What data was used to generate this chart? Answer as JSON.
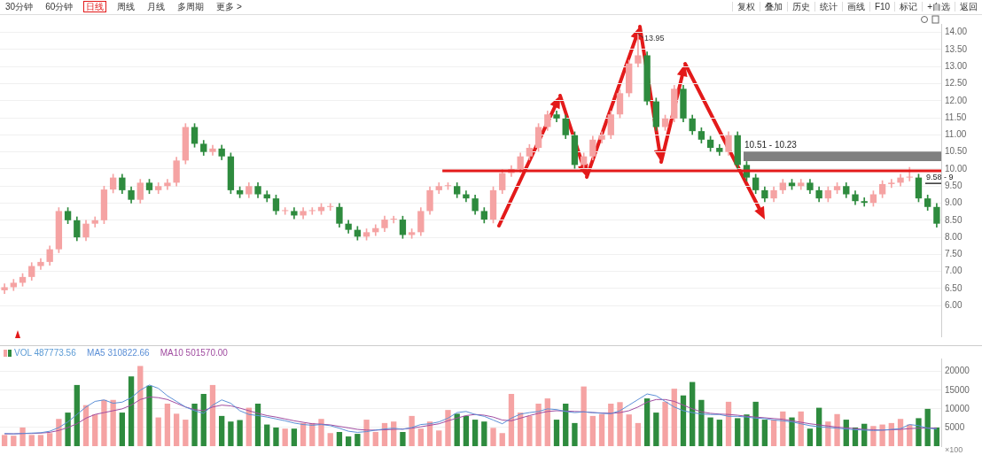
{
  "chart_data": [
    {
      "type": "candlestick",
      "annotations": [
        "30分钟",
        "60分钟",
        "日线",
        "周线",
        "月线",
        "多周期",
        "更多 >",
        "复权",
        "叠加",
        "历史",
        "统计",
        "画线",
        "F10",
        "标记",
        "+自选",
        "返回",
        "13.95"
      ],
      "categories": [
        null,
        null,
        null,
        null,
        null,
        null,
        null,
        null,
        null,
        null,
        null,
        null,
        null,
        null,
        null,
        null,
        null,
        null,
        null,
        null,
        null,
        null,
        null,
        null,
        null,
        null,
        null,
        null,
        null,
        null,
        null,
        null,
        null,
        null,
        null,
        null,
        null,
        null,
        null,
        null,
        null,
        null,
        null,
        null,
        null,
        null,
        null,
        null,
        null,
        null,
        null,
        null,
        null,
        null,
        null,
        null,
        null,
        null,
        null,
        null,
        null,
        null,
        null,
        null,
        null,
        null,
        null,
        null,
        null,
        null,
        null,
        null,
        null,
        null,
        null,
        null,
        null,
        null,
        null,
        null,
        null,
        null,
        null,
        null,
        null,
        null,
        null,
        null,
        null,
        null,
        null,
        null,
        null,
        null,
        null,
        null,
        null,
        null,
        null,
        null,
        null,
        null,
        null,
        null
      ],
      "ohlc": [
        [
          6.45,
          6.64,
          6.35,
          6.54
        ],
        [
          6.54,
          6.77,
          6.44,
          6.67
        ],
        [
          6.67,
          6.94,
          6.57,
          6.84
        ],
        [
          6.84,
          7.26,
          6.74,
          7.16
        ],
        [
          7.16,
          7.38,
          7.06,
          7.28
        ],
        [
          7.28,
          7.75,
          7.18,
          7.65
        ],
        [
          7.65,
          8.87,
          7.55,
          8.77
        ],
        [
          8.77,
          8.87,
          8.4,
          8.5
        ],
        [
          8.5,
          8.6,
          7.9,
          8.0
        ],
        [
          8.0,
          8.5,
          7.9,
          8.4
        ],
        [
          8.4,
          8.6,
          8.3,
          8.5
        ],
        [
          8.5,
          9.5,
          8.4,
          9.4
        ],
        [
          9.4,
          9.85,
          9.3,
          9.75
        ],
        [
          9.75,
          9.85,
          9.28,
          9.38
        ],
        [
          9.38,
          9.48,
          9.0,
          9.1
        ],
        [
          9.1,
          9.7,
          9.0,
          9.6
        ],
        [
          9.6,
          9.7,
          9.28,
          9.38
        ],
        [
          9.38,
          9.6,
          9.28,
          9.5
        ],
        [
          9.5,
          9.7,
          9.4,
          9.6
        ],
        [
          9.6,
          10.35,
          9.5,
          10.25
        ],
        [
          10.25,
          11.33,
          10.15,
          11.23
        ],
        [
          11.23,
          11.33,
          10.64,
          10.74
        ],
        [
          10.74,
          10.84,
          10.4,
          10.5
        ],
        [
          10.5,
          10.7,
          10.4,
          10.6
        ],
        [
          10.6,
          10.7,
          10.27,
          10.37
        ],
        [
          10.37,
          10.47,
          9.28,
          9.38
        ],
        [
          9.38,
          9.48,
          9.16,
          9.26
        ],
        [
          9.26,
          9.6,
          9.16,
          9.5
        ],
        [
          9.5,
          9.6,
          9.16,
          9.26
        ],
        [
          9.26,
          9.36,
          9.04,
          9.14
        ],
        [
          9.14,
          9.24,
          8.67,
          8.77
        ],
        [
          8.77,
          8.87,
          8.67,
          8.77
        ],
        [
          8.77,
          8.87,
          8.54,
          8.64
        ],
        [
          8.64,
          8.87,
          8.54,
          8.77
        ],
        [
          8.77,
          8.87,
          8.67,
          8.77
        ],
        [
          8.77,
          8.99,
          8.67,
          8.89
        ],
        [
          8.89,
          8.99,
          8.79,
          8.89
        ],
        [
          8.89,
          8.99,
          8.3,
          8.4
        ],
        [
          8.4,
          8.5,
          8.12,
          8.22
        ],
        [
          8.22,
          8.32,
          7.92,
          8.02
        ],
        [
          8.02,
          8.25,
          7.92,
          8.15
        ],
        [
          8.15,
          8.37,
          8.05,
          8.27
        ],
        [
          8.27,
          8.62,
          8.17,
          8.52
        ],
        [
          8.52,
          8.62,
          8.42,
          8.52
        ],
        [
          8.52,
          8.62,
          7.97,
          8.07
        ],
        [
          8.07,
          8.25,
          7.97,
          8.15
        ],
        [
          8.15,
          8.87,
          8.05,
          8.77
        ],
        [
          8.77,
          9.48,
          8.67,
          9.38
        ],
        [
          9.38,
          9.6,
          9.28,
          9.5
        ],
        [
          9.5,
          9.6,
          9.4,
          9.5
        ],
        [
          9.5,
          9.6,
          9.16,
          9.26
        ],
        [
          9.26,
          9.36,
          9.04,
          9.14
        ],
        [
          9.14,
          9.24,
          8.67,
          8.77
        ],
        [
          8.77,
          8.87,
          8.42,
          8.52
        ],
        [
          8.52,
          9.48,
          8.42,
          9.38
        ],
        [
          9.38,
          9.98,
          9.28,
          9.88
        ],
        [
          9.88,
          10.1,
          9.78,
          10.0
        ],
        [
          10.0,
          10.47,
          9.9,
          10.37
        ],
        [
          10.37,
          10.72,
          10.27,
          10.62
        ],
        [
          10.62,
          11.33,
          10.52,
          11.23
        ],
        [
          11.23,
          11.7,
          11.13,
          11.6
        ],
        [
          11.6,
          11.7,
          11.38,
          11.48
        ],
        [
          11.48,
          11.58,
          10.89,
          10.99
        ],
        [
          10.99,
          11.09,
          10.02,
          10.12
        ],
        [
          10.12,
          10.47,
          10.02,
          10.37
        ],
        [
          10.37,
          10.96,
          10.27,
          10.86
        ],
        [
          10.86,
          11.09,
          10.76,
          10.99
        ],
        [
          10.99,
          11.7,
          10.89,
          11.6
        ],
        [
          11.6,
          12.32,
          11.5,
          12.22
        ],
        [
          12.22,
          13.19,
          12.12,
          13.09
        ],
        [
          13.09,
          13.95,
          12.99,
          13.33
        ],
        [
          13.33,
          13.43,
          11.88,
          11.98
        ],
        [
          11.98,
          12.08,
          11.13,
          11.23
        ],
        [
          11.23,
          11.58,
          11.13,
          11.48
        ],
        [
          11.48,
          12.45,
          11.38,
          12.35
        ],
        [
          12.35,
          12.45,
          11.38,
          11.48
        ],
        [
          11.48,
          11.58,
          11.01,
          11.11
        ],
        [
          11.11,
          11.21,
          10.76,
          10.86
        ],
        [
          10.86,
          10.96,
          10.52,
          10.62
        ],
        [
          10.62,
          10.72,
          10.4,
          10.5
        ],
        [
          10.5,
          11.09,
          10.4,
          10.99
        ],
        [
          10.99,
          11.09,
          10.02,
          10.12
        ],
        [
          10.12,
          10.22,
          9.65,
          9.75
        ],
        [
          9.75,
          9.85,
          9.28,
          9.38
        ],
        [
          9.38,
          9.48,
          9.04,
          9.14
        ],
        [
          9.14,
          9.48,
          9.04,
          9.38
        ],
        [
          9.38,
          9.7,
          9.28,
          9.6
        ],
        [
          9.6,
          9.7,
          9.4,
          9.5
        ],
        [
          9.5,
          9.7,
          9.4,
          9.6
        ],
        [
          9.6,
          9.7,
          9.28,
          9.38
        ],
        [
          9.38,
          9.48,
          9.04,
          9.14
        ],
        [
          9.14,
          9.48,
          9.04,
          9.38
        ],
        [
          9.38,
          9.6,
          9.28,
          9.5
        ],
        [
          9.5,
          9.6,
          9.16,
          9.26
        ],
        [
          9.26,
          9.36,
          8.96,
          9.06
        ],
        [
          9.06,
          9.16,
          8.91,
          9.01
        ],
        [
          9.01,
          9.36,
          8.91,
          9.26
        ],
        [
          9.26,
          9.66,
          9.16,
          9.56
        ],
        [
          9.56,
          9.7,
          9.46,
          9.6
        ],
        [
          9.6,
          9.85,
          9.5,
          9.75
        ],
        [
          9.75,
          10.05,
          9.65,
          9.75
        ],
        [
          9.75,
          9.85,
          9.04,
          9.14
        ],
        [
          9.14,
          9.24,
          8.79,
          8.89
        ],
        [
          8.89,
          8.99,
          8.3,
          8.4
        ]
      ],
      "colors": [
        "#f5a3a3",
        "#f5a3a3",
        "#f5a3a3",
        "#f5a3a3",
        "#f5a3a3",
        "#f5a3a3",
        "#f5a3a3",
        "#2e8b3e",
        "#2e8b3e",
        "#f5a3a3",
        "#f5a3a3",
        "#f5a3a3",
        "#f5a3a3",
        "#2e8b3e",
        "#2e8b3e",
        "#f5a3a3",
        "#2e8b3e",
        "#f5a3a3",
        "#f5a3a3",
        "#f5a3a3",
        "#f5a3a3",
        "#2e8b3e",
        "#2e8b3e",
        "#f5a3a3",
        "#2e8b3e",
        "#2e8b3e",
        "#2e8b3e",
        "#f5a3a3",
        "#2e8b3e",
        "#2e8b3e",
        "#2e8b3e",
        "#f5a3a3",
        "#2e8b3e",
        "#f5a3a3",
        "#f5a3a3",
        "#f5a3a3",
        "#f5a3a3",
        "#2e8b3e",
        "#2e8b3e",
        "#2e8b3e",
        "#f5a3a3",
        "#f5a3a3",
        "#f5a3a3",
        "#f5a3a3",
        "#2e8b3e",
        "#f5a3a3",
        "#f5a3a3",
        "#f5a3a3",
        "#f5a3a3",
        "#f5a3a3",
        "#2e8b3e",
        "#2e8b3e",
        "#2e8b3e",
        "#2e8b3e",
        "#f5a3a3",
        "#f5a3a3",
        "#f5a3a3",
        "#f5a3a3",
        "#f5a3a3",
        "#f5a3a3",
        "#f5a3a3",
        "#2e8b3e",
        "#2e8b3e",
        "#2e8b3e",
        "#f5a3a3",
        "#f5a3a3",
        "#f5a3a3",
        "#f5a3a3",
        "#f5a3a3",
        "#f5a3a3",
        "#f5a3a3",
        "#2e8b3e",
        "#2e8b3e",
        "#f5a3a3",
        "#f5a3a3",
        "#2e8b3e",
        "#2e8b3e",
        "#2e8b3e",
        "#2e8b3e",
        "#2e8b3e",
        "#f5a3a3",
        "#2e8b3e",
        "#2e8b3e",
        "#2e8b3e",
        "#2e8b3e",
        "#f5a3a3",
        "#f5a3a3",
        "#2e8b3e",
        "#f5a3a3",
        "#2e8b3e",
        "#2e8b3e",
        "#f5a3a3",
        "#f5a3a3",
        "#2e8b3e",
        "#2e8b3e",
        "#2e8b3e",
        "#f5a3a3",
        "#f5a3a3",
        "#f5a3a3",
        "#f5a3a3",
        "#f5a3a3",
        "#2e8b3e",
        "#2e8b3e",
        "#2e8b3e"
      ],
      "ylim": [
        5.1,
        14.25
      ],
      "yticks": [
        {
          "value": 6,
          "label": "6.00"
        },
        {
          "value": 6.5,
          "label": "6.50"
        },
        {
          "value": 7,
          "label": "7.00"
        },
        {
          "value": 7.5,
          "label": "7.50"
        },
        {
          "value": 8,
          "label": "8.00"
        },
        {
          "value": 8.5,
          "label": "8.50"
        },
        {
          "value": 9,
          "label": "9.00"
        },
        {
          "value": 9.5,
          "label": "9.50"
        },
        {
          "value": 10,
          "label": "10.00"
        },
        {
          "value": 10.5,
          "label": "10.50"
        },
        {
          "value": 11,
          "label": "11.00"
        },
        {
          "value": 11.5,
          "label": "11.50"
        },
        {
          "value": 12,
          "label": "12.00"
        },
        {
          "value": 12.5,
          "label": "12.50"
        },
        {
          "value": 13,
          "label": "13.00"
        },
        {
          "value": 13.5,
          "label": "13.50"
        },
        {
          "value": 14,
          "label": "14.00"
        }
      ],
      "grid": "y",
      "ref_lines": [
        {
          "axis": "y",
          "value": 9.95,
          "color": "#e31a1a"
        },
        {
          "axis": "y",
          "value": 9.58,
          "label": "9.58 - 9",
          "color": "#333333"
        }
      ],
      "bands": [
        {
          "axis": "y",
          "from": 10.23,
          "to": 10.51,
          "label": "10.51 - 10.23",
          "color": "#808080"
        }
      ]
    },
    {
      "type": "bar",
      "annotations": [
        "×100"
      ],
      "categories": [
        null,
        null,
        null,
        null,
        null,
        null,
        null,
        null,
        null,
        null,
        null,
        null,
        null,
        null,
        null,
        null,
        null,
        null,
        null,
        null,
        null,
        null,
        null,
        null,
        null,
        null,
        null,
        null,
        null,
        null,
        null,
        null,
        null,
        null,
        null,
        null,
        null,
        null,
        null,
        null,
        null,
        null,
        null,
        null,
        null,
        null,
        null,
        null,
        null,
        null,
        null,
        null,
        null,
        null,
        null,
        null,
        null,
        null,
        null,
        null,
        null,
        null,
        null,
        null,
        null,
        null,
        null,
        null,
        null,
        null,
        null,
        null,
        null,
        null,
        null,
        null,
        null,
        null,
        null,
        null,
        null,
        null,
        null,
        null,
        null,
        null,
        null,
        null,
        null,
        null,
        null,
        null,
        null,
        null,
        null,
        null,
        null,
        null,
        null,
        null,
        null,
        null,
        null,
        null
      ],
      "series": [
        {
          "name": "VOL 487773.56",
          "type": "bar",
          "color": "#5b9bd5",
          "colors": [
            "#f5a3a3",
            "#f5a3a3",
            "#f5a3a3",
            "#f5a3a3",
            "#f5a3a3",
            "#f5a3a3",
            "#f5a3a3",
            "#2e8b3e",
            "#2e8b3e",
            "#f5a3a3",
            "#f5a3a3",
            "#f5a3a3",
            "#f5a3a3",
            "#2e8b3e",
            "#2e8b3e",
            "#f5a3a3",
            "#2e8b3e",
            "#f5a3a3",
            "#f5a3a3",
            "#f5a3a3",
            "#f5a3a3",
            "#2e8b3e",
            "#2e8b3e",
            "#f5a3a3",
            "#2e8b3e",
            "#2e8b3e",
            "#2e8b3e",
            "#f5a3a3",
            "#2e8b3e",
            "#2e8b3e",
            "#2e8b3e",
            "#f5a3a3",
            "#2e8b3e",
            "#f5a3a3",
            "#f5a3a3",
            "#f5a3a3",
            "#f5a3a3",
            "#2e8b3e",
            "#2e8b3e",
            "#2e8b3e",
            "#f5a3a3",
            "#f5a3a3",
            "#f5a3a3",
            "#f5a3a3",
            "#2e8b3e",
            "#f5a3a3",
            "#f5a3a3",
            "#f5a3a3",
            "#f5a3a3",
            "#f5a3a3",
            "#2e8b3e",
            "#2e8b3e",
            "#2e8b3e",
            "#2e8b3e",
            "#f5a3a3",
            "#f5a3a3",
            "#f5a3a3",
            "#f5a3a3",
            "#f5a3a3",
            "#f5a3a3",
            "#f5a3a3",
            "#2e8b3e",
            "#2e8b3e",
            "#2e8b3e",
            "#f5a3a3",
            "#f5a3a3",
            "#f5a3a3",
            "#f5a3a3",
            "#f5a3a3",
            "#f5a3a3",
            "#f5a3a3",
            "#2e8b3e",
            "#2e8b3e",
            "#f5a3a3",
            "#f5a3a3",
            "#2e8b3e",
            "#2e8b3e",
            "#2e8b3e",
            "#2e8b3e",
            "#2e8b3e",
            "#f5a3a3",
            "#2e8b3e",
            "#2e8b3e",
            "#2e8b3e",
            "#2e8b3e",
            "#f5a3a3",
            "#f5a3a3",
            "#2e8b3e",
            "#f5a3a3",
            "#2e8b3e",
            "#2e8b3e",
            "#f5a3a3",
            "#f5a3a3",
            "#2e8b3e",
            "#2e8b3e",
            "#2e8b3e",
            "#f5a3a3",
            "#f5a3a3",
            "#f5a3a3",
            "#f5a3a3",
            "#f5a3a3",
            "#2e8b3e",
            "#2e8b3e",
            "#2e8b3e"
          ],
          "values": [
            3000,
            2800,
            5000,
            3000,
            3000,
            3500,
            7300,
            9000,
            16400,
            11000,
            8500,
            12400,
            12400,
            9000,
            18700,
            21500,
            16200,
            7700,
            11400,
            8700,
            7100,
            11400,
            14000,
            16400,
            8100,
            6600,
            7000,
            10300,
            11400,
            5800,
            5000,
            4700,
            4700,
            6200,
            6200,
            7300,
            3500,
            3800,
            2600,
            3300,
            7100,
            3800,
            6200,
            6600,
            3800,
            8100,
            4700,
            6600,
            4200,
            9700,
            8700,
            8100,
            7100,
            6600,
            4900,
            3500,
            14000,
            9000,
            8100,
            11400,
            12800,
            7100,
            11400,
            6200,
            16000,
            8100,
            8600,
            11400,
            11800,
            8500,
            6200,
            12800,
            9000,
            11900,
            15400,
            13600,
            17200,
            12400,
            7700,
            7100,
            11900,
            7500,
            8500,
            11900,
            7100,
            7100,
            9300,
            7700,
            9300,
            4700,
            10300,
            6600,
            8600,
            7100,
            5000,
            6000,
            5400,
            5800,
            6200,
            7300,
            5800,
            7500,
            10000,
            5000
          ]
        },
        {
          "name": "MA5 310822.66",
          "type": "line",
          "color": "#5b8fd6",
          "values": [
            3400,
            3300,
            3400,
            3500,
            3600,
            4000,
            5000,
            6500,
            8500,
            10500,
            12000,
            12400,
            11500,
            11800,
            13000,
            15000,
            16400,
            15500,
            13500,
            12000,
            10500,
            9500,
            8800,
            11000,
            12400,
            11500,
            9500,
            8500,
            8200,
            7800,
            7300,
            6800,
            6200,
            5800,
            5600,
            5800,
            5500,
            4800,
            4000,
            3700,
            3900,
            4300,
            4600,
            4800,
            4500,
            5000,
            5800,
            6000,
            6500,
            7500,
            9000,
            9300,
            8500,
            8000,
            7000,
            6000,
            7500,
            8600,
            9000,
            9300,
            10000,
            9800,
            9300,
            9000,
            9200,
            9000,
            8800,
            8700,
            9500,
            11000,
            12500,
            14000,
            13500,
            12000,
            10500,
            9500,
            9000,
            8600,
            8500,
            8500,
            8000,
            8000,
            7800,
            7500,
            7400,
            7000,
            6800,
            6500,
            6000,
            5500,
            5200,
            5000,
            4800,
            4600,
            4400,
            4300,
            4200,
            4300,
            4500,
            4700,
            5800,
            5500,
            4800,
            4600
          ]
        },
        {
          "name": "MA10 501570.00",
          "type": "line",
          "color": "#a04ca0",
          "values": [
            3300,
            3300,
            3400,
            3400,
            3500,
            3700,
            4200,
            5000,
            6000,
            7500,
            8500,
            9000,
            9500,
            10000,
            11000,
            12500,
            13200,
            13000,
            12500,
            11500,
            10500,
            9800,
            9500,
            10500,
            11000,
            10800,
            10200,
            9500,
            8800,
            8200,
            7800,
            7300,
            6800,
            6400,
            6000,
            5900,
            5700,
            5300,
            4900,
            4500,
            4300,
            4300,
            4400,
            4500,
            4600,
            4800,
            5200,
            5600,
            6000,
            6800,
            7500,
            8200,
            8500,
            8300,
            7800,
            7000,
            6800,
            7500,
            8200,
            8800,
            9300,
            9500,
            9400,
            9300,
            9200,
            9000,
            8900,
            8800,
            9000,
            9500,
            10500,
            11800,
            12500,
            12500,
            12000,
            11000,
            10000,
            9200,
            8800,
            8600,
            8500,
            8300,
            8000,
            7800,
            7600,
            7400,
            7200,
            6800,
            6400,
            6000,
            5700,
            5400,
            5100,
            4900,
            4700,
            4500,
            4400,
            4300,
            4400,
            4500,
            4700,
            4800,
            4900,
            4800
          ]
        }
      ],
      "ylim": [
        0,
        23500
      ],
      "yticks": [
        5000,
        10000,
        15000,
        20000
      ],
      "grid": "y",
      "legend": "top left",
      "marker": "none"
    }
  ]
}
